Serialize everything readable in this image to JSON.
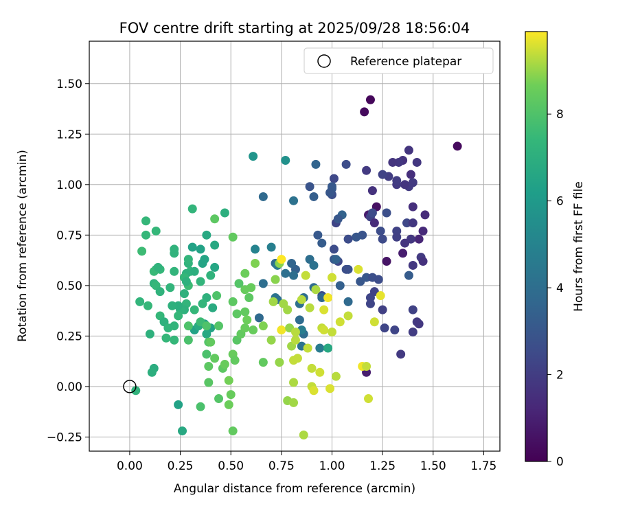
{
  "chart_data": {
    "type": "scatter",
    "title": "FOV centre drift starting at 2025/09/28 18:56:04",
    "xlabel": "Angular distance from reference (arcmin)",
    "ylabel": "Rotation from reference (arcmin)",
    "xlim": [
      -0.2,
      1.83
    ],
    "ylim": [
      -0.32,
      1.71
    ],
    "xticks": [
      0.0,
      0.25,
      0.5,
      0.75,
      1.0,
      1.25,
      1.5,
      1.75
    ],
    "xtick_labels": [
      "0.00",
      "0.25",
      "0.50",
      "0.75",
      "1.00",
      "1.25",
      "1.50",
      "1.75"
    ],
    "yticks": [
      -0.25,
      0.0,
      0.25,
      0.5,
      0.75,
      1.0,
      1.25,
      1.5
    ],
    "ytick_labels": [
      "−0.25",
      "0.00",
      "0.25",
      "0.50",
      "0.75",
      "1.00",
      "1.25",
      "1.50"
    ],
    "grid": true,
    "colormap": "viridis",
    "colorbar": {
      "label": "Hours from first FF file",
      "min": 0,
      "max": 9.9,
      "ticks": [
        0,
        2,
        4,
        6,
        8
      ],
      "tick_labels": [
        "0",
        "2",
        "4",
        "6",
        "8"
      ]
    },
    "legend": {
      "placement": "top-right",
      "entries": [
        {
          "label": "Reference platepar",
          "marker": "open-circle"
        }
      ]
    },
    "reference_point": {
      "x": 0.0,
      "y": 0.0
    },
    "points": [
      [
        1.19,
        1.42,
        0.2
      ],
      [
        1.16,
        1.36,
        0.3
      ],
      [
        1.62,
        1.19,
        0.3
      ],
      [
        1.22,
        0.89,
        0.5
      ],
      [
        1.27,
        0.62,
        0.6
      ],
      [
        1.35,
        0.66,
        0.9
      ],
      [
        1.17,
        0.07,
        0.9
      ],
      [
        1.18,
        0.85,
        0.8
      ],
      [
        1.4,
        0.89,
        1.5
      ],
      [
        1.46,
        0.85,
        1.4
      ],
      [
        1.45,
        0.77,
        1.3
      ],
      [
        1.43,
        0.73,
        1.2
      ],
      [
        1.39,
        1.05,
        1.5
      ],
      [
        1.38,
        1.17,
        1.7
      ],
      [
        1.35,
        1.12,
        1.6
      ],
      [
        1.33,
        1.11,
        1.8
      ],
      [
        1.3,
        1.11,
        1.7
      ],
      [
        1.28,
        1.04,
        2.0
      ],
      [
        1.25,
        1.05,
        2.2
      ],
      [
        1.38,
        0.99,
        1.9
      ],
      [
        1.36,
        1.0,
        1.7
      ],
      [
        1.32,
        1.0,
        1.9
      ],
      [
        1.32,
        1.02,
        2.0
      ],
      [
        1.4,
        1.01,
        1.9
      ],
      [
        1.42,
        1.11,
        1.8
      ],
      [
        1.2,
        0.97,
        1.6
      ],
      [
        1.17,
        1.07,
        1.9
      ],
      [
        1.19,
        0.84,
        2.2
      ],
      [
        1.2,
        0.86,
        2.5
      ],
      [
        1.21,
        0.81,
        1.4
      ],
      [
        1.37,
        0.81,
        2.4
      ],
      [
        1.4,
        0.81,
        1.8
      ],
      [
        1.32,
        0.77,
        2.2
      ],
      [
        1.32,
        0.74,
        2.1
      ],
      [
        1.39,
        0.73,
        1.8
      ],
      [
        1.36,
        0.71,
        1.7
      ],
      [
        1.44,
        0.64,
        1.9
      ],
      [
        1.45,
        0.62,
        1.6
      ],
      [
        1.4,
        0.6,
        1.8
      ],
      [
        1.27,
        0.86,
        2.7
      ],
      [
        1.24,
        0.77,
        2.6
      ],
      [
        1.25,
        0.73,
        2.5
      ],
      [
        1.15,
        0.75,
        2.9
      ],
      [
        1.12,
        0.74,
        3.0
      ],
      [
        1.08,
        0.73,
        2.6
      ],
      [
        1.05,
        0.85,
        3.5
      ],
      [
        1.02,
        0.81,
        2.3
      ],
      [
        1.03,
        0.83,
        3.0
      ],
      [
        1.07,
        1.1,
        2.6
      ],
      [
        1.01,
        1.03,
        2.4
      ],
      [
        1.0,
        0.99,
        3.1
      ],
      [
        1.0,
        0.95,
        2.7
      ],
      [
        0.92,
        1.1,
        3.6
      ],
      [
        0.91,
        0.94,
        3.3
      ],
      [
        0.89,
        0.99,
        2.9
      ],
      [
        0.93,
        0.75,
        3.1
      ],
      [
        0.95,
        0.71,
        3.2
      ],
      [
        1.01,
        0.68,
        2.6
      ],
      [
        1.01,
        0.63,
        3.0
      ],
      [
        1.03,
        0.62,
        2.4
      ],
      [
        1.08,
        0.58,
        2.9
      ],
      [
        1.07,
        0.58,
        2.7
      ],
      [
        1.17,
        0.54,
        3.0
      ],
      [
        1.14,
        0.52,
        3.0
      ],
      [
        1.2,
        0.54,
        2.7
      ],
      [
        1.23,
        0.53,
        2.6
      ],
      [
        1.19,
        0.44,
        2.3
      ],
      [
        1.19,
        0.41,
        2.3
      ],
      [
        1.21,
        0.47,
        2.2
      ],
      [
        1.25,
        0.38,
        2.1
      ],
      [
        1.26,
        0.29,
        2.3
      ],
      [
        1.31,
        0.28,
        2.3
      ],
      [
        1.34,
        0.16,
        1.9
      ],
      [
        1.4,
        0.38,
        2.2
      ],
      [
        1.4,
        0.27,
        2.0
      ],
      [
        1.42,
        0.32,
        1.9
      ],
      [
        1.43,
        0.31,
        1.8
      ],
      [
        1.38,
        0.55,
        3.2
      ],
      [
        1.02,
        0.63,
        3.5
      ],
      [
        1.04,
        0.5,
        3.4
      ],
      [
        1.08,
        0.42,
        3.8
      ],
      [
        0.95,
        0.45,
        2.6
      ],
      [
        0.95,
        0.44,
        3.7
      ],
      [
        0.91,
        0.49,
        3.9
      ],
      [
        0.94,
        0.19,
        4.6
      ],
      [
        0.89,
        0.63,
        4.0
      ],
      [
        0.91,
        0.6,
        4.2
      ],
      [
        0.82,
        0.58,
        3.4
      ],
      [
        0.8,
        0.61,
        3.6
      ],
      [
        0.72,
        0.61,
        3.8
      ],
      [
        0.73,
        0.6,
        4.5
      ],
      [
        0.7,
        0.69,
        4.8
      ],
      [
        0.66,
        0.94,
        3.8
      ],
      [
        0.81,
        0.92,
        4.2
      ],
      [
        0.77,
        1.12,
        5.6
      ],
      [
        0.62,
        0.68,
        5.0
      ],
      [
        0.61,
        1.14,
        5.8
      ],
      [
        0.64,
        0.34,
        3.8
      ],
      [
        0.66,
        0.51,
        4.0
      ],
      [
        0.72,
        0.44,
        4.3
      ],
      [
        0.73,
        0.43,
        4.1
      ],
      [
        0.77,
        0.56,
        4.1
      ],
      [
        0.81,
        0.55,
        4.0
      ],
      [
        0.84,
        0.41,
        4.1
      ],
      [
        0.86,
        0.44,
        4.0
      ],
      [
        0.86,
        0.26,
        3.9
      ],
      [
        0.84,
        0.33,
        3.9
      ],
      [
        0.85,
        0.28,
        4.7
      ],
      [
        0.85,
        0.2,
        4.2
      ],
      [
        0.98,
        0.19,
        6.7
      ],
      [
        0.4,
        0.29,
        6.4
      ],
      [
        0.38,
        0.26,
        6.7
      ],
      [
        0.37,
        0.31,
        6.3
      ],
      [
        0.32,
        0.28,
        6.4
      ],
      [
        0.34,
        0.3,
        6.8
      ],
      [
        0.31,
        0.69,
        6.4
      ],
      [
        0.35,
        0.68,
        6.4
      ],
      [
        0.36,
        0.61,
        6.5
      ],
      [
        0.37,
        0.63,
        6.5
      ],
      [
        0.38,
        0.75,
        6.7
      ],
      [
        0.42,
        0.7,
        6.7
      ],
      [
        0.42,
        0.59,
        6.6
      ],
      [
        0.4,
        0.55,
        7.2
      ],
      [
        0.38,
        0.44,
        7.1
      ],
      [
        0.41,
        0.39,
        6.8
      ],
      [
        0.47,
        0.86,
        7.0
      ],
      [
        0.31,
        0.88,
        7.3
      ],
      [
        0.29,
        0.61,
        7.2
      ],
      [
        0.29,
        0.63,
        7.3
      ],
      [
        0.3,
        0.57,
        7.3
      ],
      [
        0.32,
        0.57,
        7.0
      ],
      [
        0.28,
        0.56,
        7.1
      ],
      [
        0.29,
        0.5,
        7.6
      ],
      [
        0.27,
        0.54,
        7.4
      ],
      [
        0.28,
        0.52,
        7.1
      ],
      [
        0.35,
        0.52,
        7.3
      ],
      [
        0.36,
        0.41,
        7.3
      ],
      [
        0.32,
        0.38,
        7.4
      ],
      [
        0.27,
        0.46,
        7.1
      ],
      [
        0.28,
        0.41,
        7.3
      ],
      [
        0.27,
        0.38,
        7.1
      ],
      [
        0.25,
        0.38,
        7.2
      ],
      [
        0.24,
        0.4,
        7.0
      ],
      [
        0.21,
        0.4,
        7.1
      ],
      [
        0.2,
        0.49,
        7.3
      ],
      [
        0.22,
        0.57,
        7.3
      ],
      [
        0.22,
        0.68,
        7.2
      ],
      [
        0.22,
        0.66,
        7.2
      ],
      [
        0.15,
        0.58,
        7.4
      ],
      [
        0.13,
        0.58,
        7.2
      ],
      [
        0.12,
        0.57,
        7.5
      ],
      [
        0.14,
        0.59,
        7.2
      ],
      [
        0.12,
        0.51,
        7.2
      ],
      [
        0.13,
        0.5,
        7.4
      ],
      [
        0.13,
        0.77,
        7.4
      ],
      [
        0.08,
        0.82,
        7.4
      ],
      [
        0.08,
        0.75,
        7.4
      ],
      [
        0.06,
        0.67,
        7.6
      ],
      [
        0.05,
        0.42,
        7.3
      ],
      [
        0.09,
        0.4,
        7.4
      ],
      [
        0.15,
        0.47,
        7.2
      ],
      [
        0.15,
        0.35,
        7.4
      ],
      [
        0.17,
        0.32,
        7.1
      ],
      [
        0.19,
        0.29,
        7.3
      ],
      [
        0.18,
        0.24,
        7.4
      ],
      [
        0.1,
        0.26,
        7.1
      ],
      [
        0.12,
        0.09,
        6.9
      ],
      [
        0.11,
        0.07,
        7.0
      ],
      [
        0.03,
        -0.02,
        7.2
      ],
      [
        0.22,
        0.3,
        7.3
      ],
      [
        0.24,
        0.35,
        7.4
      ],
      [
        0.22,
        0.23,
        7.4
      ],
      [
        0.24,
        -0.09,
        6.4
      ],
      [
        0.26,
        -0.22,
        6.7
      ],
      [
        0.29,
        0.3,
        8.0
      ],
      [
        0.29,
        0.23,
        7.9
      ],
      [
        0.35,
        0.32,
        7.6
      ],
      [
        0.35,
        -0.1,
        7.9
      ],
      [
        0.38,
        0.3,
        8.0
      ],
      [
        0.38,
        0.16,
        7.9
      ],
      [
        0.39,
        0.22,
        8.1
      ],
      [
        0.39,
        0.1,
        8.3
      ],
      [
        0.4,
        0.22,
        8.4
      ],
      [
        0.39,
        0.02,
        8.2
      ],
      [
        0.42,
        0.14,
        8.4
      ],
      [
        0.44,
        0.3,
        8.1
      ],
      [
        0.43,
        0.45,
        8.0
      ],
      [
        0.42,
        0.83,
        8.3
      ],
      [
        0.44,
        -0.06,
        8.1
      ],
      [
        0.46,
        0.09,
        8.3
      ],
      [
        0.47,
        0.11,
        8.5
      ],
      [
        0.49,
        0.03,
        8.7
      ],
      [
        0.49,
        -0.09,
        8.6
      ],
      [
        0.5,
        -0.04,
        8.5
      ],
      [
        0.51,
        0.16,
        8.5
      ],
      [
        0.51,
        0.74,
        8.4
      ],
      [
        0.51,
        0.42,
        8.3
      ],
      [
        0.52,
        0.13,
        8.4
      ],
      [
        0.51,
        -0.22,
        8.4
      ],
      [
        0.53,
        0.36,
        8.3
      ],
      [
        0.53,
        0.23,
        8.2
      ],
      [
        0.54,
        0.51,
        8.1
      ],
      [
        0.55,
        0.26,
        8.4
      ],
      [
        0.57,
        0.29,
        8.5
      ],
      [
        0.57,
        0.37,
        8.4
      ],
      [
        0.57,
        0.56,
        8.6
      ],
      [
        0.57,
        0.48,
        8.5
      ],
      [
        0.58,
        0.33,
        8.6
      ],
      [
        0.59,
        0.44,
        8.3
      ],
      [
        0.6,
        0.49,
        8.5
      ],
      [
        0.61,
        0.28,
        8.5
      ],
      [
        0.62,
        0.61,
        8.8
      ],
      [
        0.66,
        0.3,
        8.8
      ],
      [
        0.66,
        0.12,
        8.4
      ],
      [
        0.7,
        0.23,
        9.0
      ],
      [
        0.72,
        0.53,
        8.9
      ],
      [
        0.71,
        0.42,
        9.1
      ],
      [
        0.74,
        0.61,
        8.9
      ],
      [
        0.75,
        0.63,
        9.9
      ],
      [
        0.75,
        0.28,
        9.8
      ],
      [
        0.74,
        0.12,
        9.0
      ],
      [
        0.76,
        0.41,
        9.1
      ],
      [
        0.78,
        0.38,
        9.1
      ],
      [
        0.79,
        0.29,
        9.0
      ],
      [
        0.78,
        -0.07,
        9.0
      ],
      [
        0.8,
        0.2,
        9.1
      ],
      [
        0.81,
        0.02,
        9.2
      ],
      [
        0.81,
        -0.08,
        9.1
      ],
      [
        0.81,
        0.13,
        9.4
      ],
      [
        0.82,
        0.27,
        9.3
      ],
      [
        0.82,
        0.23,
        9.3
      ],
      [
        0.83,
        0.14,
        9.4
      ],
      [
        0.85,
        0.43,
        9.3
      ],
      [
        0.86,
        -0.24,
        9.2
      ],
      [
        0.87,
        0.55,
        9.4
      ],
      [
        0.88,
        0.19,
        9.4
      ],
      [
        0.89,
        0.39,
        9.3
      ],
      [
        0.9,
        0.09,
        9.4
      ],
      [
        0.9,
        0.0,
        9.4
      ],
      [
        0.91,
        -0.02,
        9.6
      ],
      [
        0.92,
        0.48,
        9.2
      ],
      [
        0.94,
        0.07,
        9.5
      ],
      [
        0.95,
        0.29,
        9.4
      ],
      [
        0.96,
        0.38,
        9.6
      ],
      [
        0.96,
        0.28,
        9.5
      ],
      [
        0.98,
        0.44,
        9.8
      ],
      [
        0.99,
        -0.01,
        9.6
      ],
      [
        1.0,
        0.54,
        9.5
      ],
      [
        1.0,
        0.27,
        9.4
      ],
      [
        1.02,
        0.05,
        9.3
      ],
      [
        1.04,
        0.32,
        9.5
      ],
      [
        1.08,
        0.35,
        9.4
      ],
      [
        1.13,
        0.58,
        9.6
      ],
      [
        1.15,
        0.1,
        9.8
      ],
      [
        1.17,
        0.1,
        9.4
      ],
      [
        1.18,
        -0.06,
        9.5
      ],
      [
        1.21,
        0.32,
        9.5
      ],
      [
        1.24,
        0.45,
        9.7
      ],
      [
        1.0,
        0.98,
        3.1
      ],
      [
        0.99,
        0.96,
        3.0
      ]
    ]
  }
}
